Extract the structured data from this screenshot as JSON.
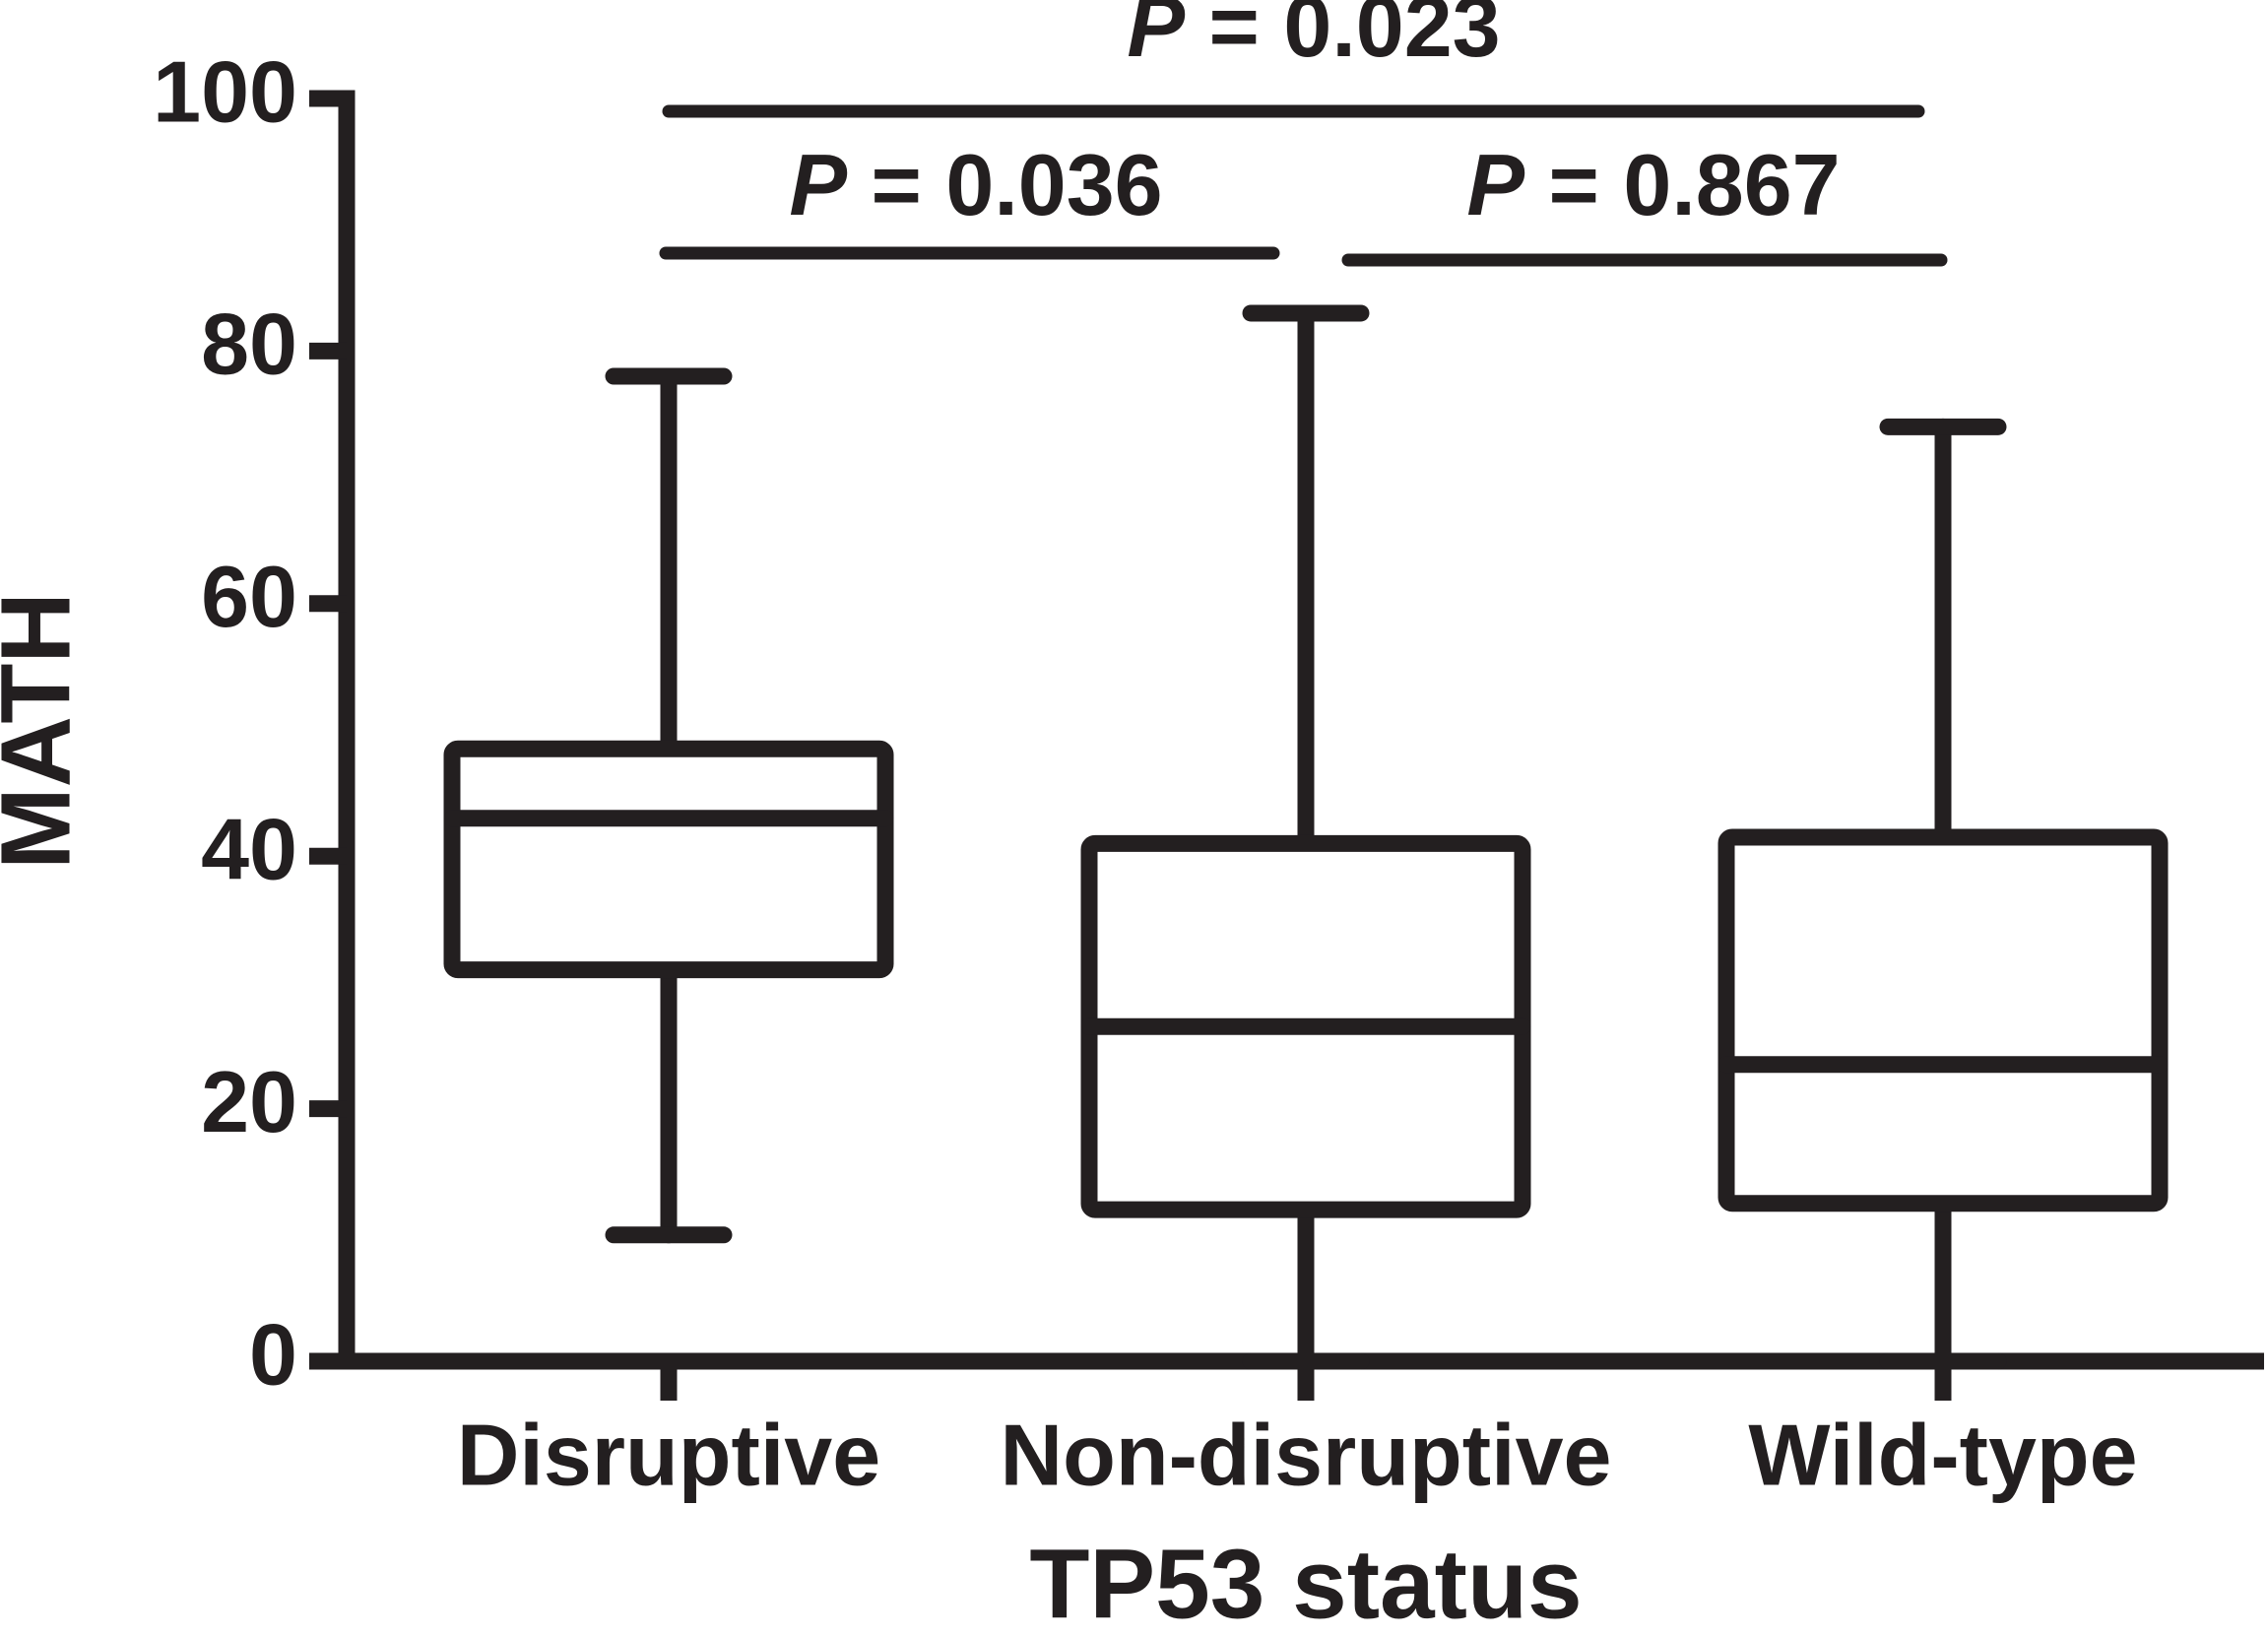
{
  "chart_data": {
    "type": "box",
    "x_label": "TP53 status",
    "y_label": "MATH",
    "categories": [
      "Disruptive",
      "Non-disruptive",
      "Wild-type"
    ],
    "min": [
      10,
      0,
      0
    ],
    "q1": [
      31,
      12,
      12.5
    ],
    "median": [
      43,
      26.5,
      23.5
    ],
    "q3": [
      48.5,
      41,
      41.5
    ],
    "max": [
      78,
      83,
      74
    ],
    "ylim": [
      0,
      100
    ],
    "yticks": [
      0,
      20,
      40,
      60,
      80,
      100
    ],
    "color": "#231f20",
    "annotations": [
      {
        "italic": "P",
        "rest": "= 0.023"
      },
      {
        "italic": "P",
        "rest": "= 0.036"
      },
      {
        "italic": "P",
        "rest": "= 0.867"
      }
    ]
  }
}
